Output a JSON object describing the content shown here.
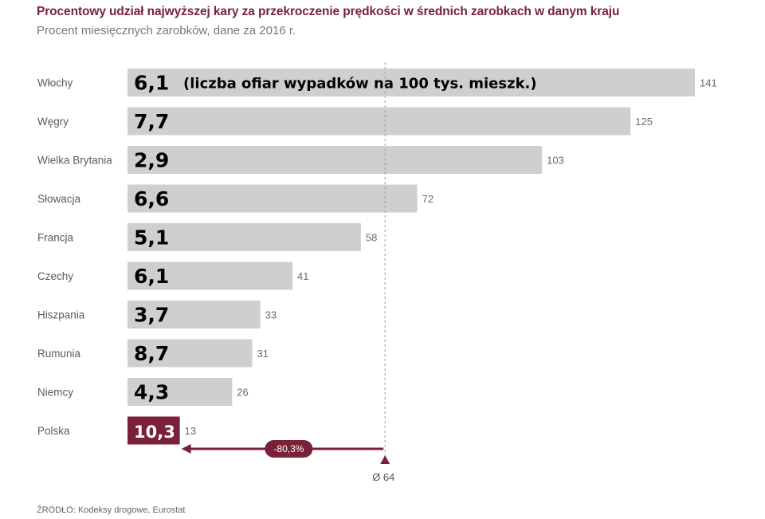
{
  "chart_data": {
    "type": "bar",
    "orientation": "horizontal",
    "title": "Procentowy udział najwyższej kary za przekroczenie prędkości w średnich zarobkach w danym kraju",
    "subtitle": "Procent miesięcznych zarobków, dane za 2016 r.",
    "categories": [
      "Włochy",
      "Węgry",
      "Wielka Brytania",
      "Słowacja",
      "Francja",
      "Czechy",
      "Hiszpania",
      "Rumunia",
      "Niemcy",
      "Polska"
    ],
    "values": [
      141,
      125,
      103,
      72,
      58,
      41,
      33,
      31,
      26,
      13
    ],
    "value_labels": [
      "141",
      "125",
      "103",
      "72",
      "58",
      "41",
      "33",
      "31",
      "26",
      "13"
    ],
    "overlay_labels": [
      "6,1",
      "7,7",
      "2,9",
      "6,6",
      "5,1",
      "6,1",
      "3,7",
      "8,7",
      "4,3",
      "10,3"
    ],
    "overlay_note": "(liczba ofiar wypadków na 100 tys. mieszk.)",
    "highlight_category": "Polska",
    "average": {
      "value": 64,
      "label": "Ø 64"
    },
    "difference_label": "-80,3%",
    "xlim": [
      0,
      141
    ],
    "grid": false,
    "colors": {
      "bar": "#cfcfcf",
      "highlight": "#7a2138",
      "average_line": "#9a9a9a"
    },
    "source": "ŹRÓDŁO: Kodeksy drogowe, Eurostat"
  }
}
